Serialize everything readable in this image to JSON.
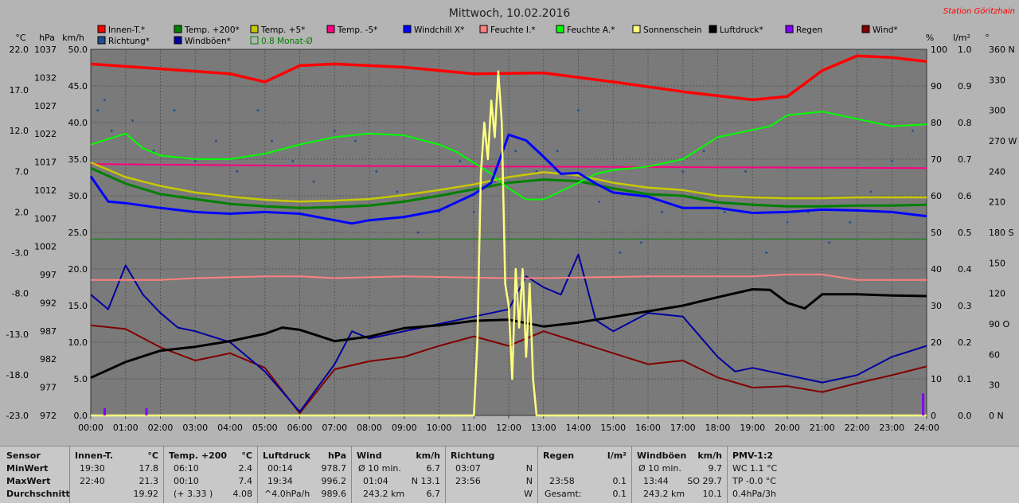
{
  "chart_data": {
    "type": "line",
    "title": "Mittwoch, 10.02.2016",
    "station": "Station Göritzhain",
    "x_ticks": [
      "00:00",
      "01:00",
      "02:00",
      "03:00",
      "04:00",
      "05:00",
      "06:00",
      "07:00",
      "08:00",
      "09:00",
      "10:00",
      "11:00",
      "12:00",
      "13:00",
      "14:00",
      "15:00",
      "16:00",
      "17:00",
      "18:00",
      "19:00",
      "20:00",
      "21:00",
      "22:00",
      "23:00",
      "24:00"
    ],
    "axes": {
      "celsius": {
        "label": "°C",
        "ticks": [
          "22.0",
          "17.0",
          "12.0",
          "7.0",
          "2.0",
          "-3.0",
          "-8.0",
          "-13.0",
          "-18.0",
          "-23.0"
        ]
      },
      "hpa": {
        "label": "hPa",
        "ticks": [
          "1037",
          "1032",
          "1027",
          "1022",
          "1017",
          "1012",
          "1007",
          "1002",
          "997",
          "992",
          "987",
          "982",
          "977",
          "972"
        ]
      },
      "kmh": {
        "label": "km/h",
        "ticks": [
          "50.0",
          "45.0",
          "40.0",
          "35.0",
          "30.0",
          "25.0",
          "20.0",
          "15.0",
          "10.0",
          "5.0",
          "0.0"
        ]
      },
      "percent": {
        "label": "%",
        "ticks": [
          "100",
          "90",
          "80",
          "70",
          "60",
          "50",
          "40",
          "30",
          "20",
          "10",
          "0"
        ]
      },
      "rain": {
        "label": "l/m²",
        "ticks": [
          "1.0",
          "0.9",
          "0.8",
          "0.7",
          "0.6",
          "0.5",
          "0.4",
          "0.3",
          "0.2",
          "0.1",
          "0.0"
        ]
      },
      "degree": {
        "label": "°",
        "ticks": [
          "360 N",
          "330",
          "300",
          "270 W",
          "240",
          "210",
          "180 S",
          "150",
          "120",
          "90 O",
          "60",
          "30",
          "0 N"
        ]
      }
    },
    "legend": [
      {
        "name": "Innen-T.*",
        "color": "#ff0000"
      },
      {
        "name": "Temp. +200*",
        "color": "#008000"
      },
      {
        "name": "Temp. +5*",
        "color": "#c8c800"
      },
      {
        "name": "Temp. -5*",
        "color": "#ff0080"
      },
      {
        "name": "Windchill X*",
        "color": "#0000ff"
      },
      {
        "name": "Feuchte I.*",
        "color": "#ff8080"
      },
      {
        "name": "Feuchte A.*",
        "color": "#00ff00"
      },
      {
        "name": "Sonnenschein",
        "color": "#ffff80"
      },
      {
        "name": "Luftdruck*",
        "color": "#000000"
      },
      {
        "name": "Regen",
        "color": "#8000ff"
      },
      {
        "name": "Wind*",
        "color": "#800000"
      },
      {
        "name": "Richtung*",
        "color": "#1f4e8c"
      },
      {
        "name": "Windböen*",
        "color": "#0000a0"
      },
      {
        "name": "0.8 Monat-Ø",
        "color": "#008000"
      }
    ],
    "series": [
      {
        "name": "Innen-T.*",
        "axis": "celsius",
        "color": "#ff0000",
        "x": [
          0,
          2,
          4,
          5,
          6,
          7,
          9,
          11,
          13,
          15,
          17,
          19,
          20,
          21,
          22,
          23,
          24
        ],
        "y": [
          20.2,
          19.6,
          19.0,
          18.0,
          20.0,
          20.2,
          19.8,
          19.0,
          19.1,
          18.0,
          16.8,
          15.8,
          16.2,
          19.4,
          21.2,
          21.0,
          20.5
        ]
      },
      {
        "name": "Temp. +200*",
        "axis": "celsius",
        "color": "#008000",
        "x": [
          0,
          1,
          2,
          3,
          4,
          5,
          6,
          7,
          8,
          9,
          10,
          11,
          12,
          13,
          14,
          15,
          16,
          17,
          18,
          19,
          20,
          21,
          22,
          23,
          24
        ],
        "y": [
          7.4,
          5.5,
          4.2,
          3.6,
          3.0,
          2.7,
          2.5,
          2.6,
          2.8,
          3.3,
          4.0,
          4.8,
          5.6,
          6.0,
          5.8,
          4.9,
          4.2,
          4.0,
          3.2,
          2.9,
          2.7,
          2.7,
          2.8,
          2.8,
          2.9
        ]
      },
      {
        "name": "Temp. +5*",
        "axis": "celsius",
        "color": "#c8c800",
        "x": [
          0,
          1,
          2,
          3,
          4,
          5,
          6,
          7,
          8,
          9,
          10,
          11,
          12,
          13,
          14,
          15,
          16,
          17,
          18,
          19,
          20,
          21,
          22,
          23,
          24
        ],
        "y": [
          8.1,
          6.3,
          5.2,
          4.4,
          3.9,
          3.5,
          3.3,
          3.4,
          3.6,
          4.1,
          4.7,
          5.4,
          6.3,
          6.9,
          6.5,
          5.6,
          5.0,
          4.7,
          4.0,
          3.8,
          3.7,
          3.7,
          3.8,
          3.8,
          3.8
        ]
      },
      {
        "name": "Temp. -5*",
        "axis": "celsius",
        "color": "#ff0080",
        "x": [
          0,
          6,
          12,
          18,
          24
        ],
        "y": [
          7.9,
          7.7,
          7.6,
          7.5,
          7.4
        ]
      },
      {
        "name": "Windchill X*",
        "axis": "celsius",
        "color": "#0000ff",
        "x": [
          0,
          0.5,
          1,
          2,
          3,
          4,
          5,
          6,
          7,
          7.5,
          8,
          9,
          10,
          10.5,
          11,
          11.5,
          12,
          12.5,
          13,
          13.5,
          14,
          14.5,
          15,
          16,
          17,
          18,
          19,
          20,
          21,
          22,
          23,
          24
        ],
        "y": [
          6.4,
          3.3,
          3.1,
          2.5,
          2.0,
          1.8,
          2.0,
          1.8,
          1.0,
          0.6,
          1.0,
          1.4,
          2.2,
          3.2,
          4.2,
          5.6,
          11.5,
          10.8,
          8.8,
          6.7,
          6.8,
          5.5,
          4.4,
          3.9,
          2.5,
          2.5,
          1.9,
          2.0,
          2.3,
          2.2,
          2.0,
          1.5
        ]
      },
      {
        "name": "Feuchte I.*",
        "axis": "percent",
        "color": "#ff8080",
        "x": [
          0,
          2,
          3,
          5,
          6,
          7,
          9,
          12,
          13,
          16,
          18,
          19,
          20,
          21,
          22,
          23,
          24
        ],
        "y": [
          37,
          37,
          37.5,
          38,
          38,
          37.5,
          38,
          37.5,
          37.5,
          38,
          38,
          38,
          38.5,
          38.5,
          37,
          37,
          37
        ]
      },
      {
        "name": "Feuchte A.*",
        "axis": "percent",
        "color": "#00ff00",
        "x": [
          0,
          1,
          1.5,
          2,
          3,
          4,
          5,
          6,
          7,
          8,
          9,
          10,
          10.5,
          11,
          11.5,
          12,
          12.5,
          13,
          14,
          14.5,
          15,
          16,
          17,
          18,
          19,
          19.5,
          20,
          21,
          22,
          23,
          24
        ],
        "y": [
          74,
          77,
          73,
          71,
          70,
          70,
          71.5,
          74,
          76,
          77,
          76.5,
          74,
          72,
          69,
          66,
          62,
          59,
          59,
          63.5,
          66,
          67,
          68,
          70,
          76,
          78,
          79,
          82,
          83,
          81,
          79,
          79.5
        ]
      },
      {
        "name": "Sonnenschein",
        "axis": "kmh",
        "color": "#ffff80",
        "x": [
          0,
          11.0,
          11.1,
          11.2,
          11.3,
          11.4,
          11.5,
          11.6,
          11.7,
          11.8,
          11.9,
          12.0,
          12.1,
          12.2,
          12.3,
          12.4,
          12.5,
          12.6,
          12.7,
          12.8,
          24
        ],
        "y": [
          0,
          0,
          10,
          33,
          40,
          35,
          43,
          38,
          47,
          40,
          18,
          15,
          5,
          20,
          12,
          20,
          8,
          18,
          5,
          0,
          0
        ]
      },
      {
        "name": "Luftdruck*",
        "axis": "hpa",
        "color": "#000000",
        "x": [
          0,
          1,
          2,
          3,
          4,
          5,
          5.5,
          6,
          7,
          8,
          9,
          10,
          11,
          12,
          13,
          14,
          15,
          16,
          17,
          18,
          19,
          19.5,
          20,
          20.5,
          21,
          22,
          23,
          24
        ],
        "y": [
          978.7,
          981.5,
          983.5,
          984.2,
          985.2,
          986.5,
          987.6,
          987.2,
          985.2,
          986.0,
          987.5,
          988.0,
          988.8,
          989.0,
          987.8,
          988.5,
          989.5,
          990.5,
          991.5,
          993.0,
          994.4,
          994.3,
          992.0,
          991.0,
          993.5,
          993.5,
          993.3,
          993.2
        ]
      },
      {
        "name": "Regen",
        "axis": "rain",
        "color": "#8000ff",
        "x": [
          0.4,
          1.6,
          23.9
        ],
        "y": [
          0.02,
          0.02,
          0.06
        ]
      },
      {
        "name": "Wind*",
        "axis": "kmh",
        "color": "#800000",
        "x": [
          0,
          1,
          2,
          3,
          4,
          5,
          6,
          7,
          8,
          9,
          10,
          11,
          12,
          13,
          14,
          15,
          16,
          17,
          18,
          19,
          20,
          21,
          22,
          23,
          24
        ],
        "y": [
          12.3,
          11.8,
          9.3,
          7.5,
          8.5,
          6.5,
          0.3,
          6.3,
          7.4,
          8.0,
          9.5,
          10.8,
          9.5,
          11.5,
          10.0,
          8.5,
          7.0,
          7.5,
          5.2,
          3.8,
          4.0,
          3.2,
          4.4,
          5.5,
          6.7
        ]
      },
      {
        "name": "Windböen*",
        "axis": "kmh",
        "color": "#0000a0",
        "x": [
          0,
          0.5,
          1,
          1.5,
          2,
          2.5,
          3,
          4,
          5,
          6,
          7,
          7.5,
          8,
          9,
          10,
          11,
          12,
          12.5,
          13,
          13.5,
          14,
          14.5,
          15,
          16,
          17,
          18,
          18.5,
          19,
          20,
          21,
          22,
          23,
          24
        ],
        "y": [
          16.5,
          14.5,
          20.5,
          16.5,
          14.0,
          12.0,
          11.5,
          10.0,
          6.0,
          0.5,
          7.0,
          11.5,
          10.5,
          11.5,
          12.5,
          13.5,
          14.5,
          19.0,
          17.5,
          16.5,
          22.0,
          13.0,
          11.5,
          14.0,
          13.5,
          8.0,
          6.0,
          6.5,
          5.5,
          4.5,
          5.5,
          8.0,
          9.5
        ]
      },
      {
        "name": "0.8 Monat-Ø",
        "axis": "kmh",
        "color": "#008000",
        "x": [
          0,
          24
        ],
        "y": [
          24.1,
          24.1
        ]
      }
    ],
    "direction_points": {
      "axis": "degree",
      "color": "#1f4e8c",
      "values": [
        [
          0.2,
          300
        ],
        [
          0.4,
          310
        ],
        [
          0.6,
          280
        ],
        [
          1.2,
          290
        ],
        [
          1.8,
          260
        ],
        [
          2.4,
          300
        ],
        [
          3.0,
          250
        ],
        [
          3.6,
          270
        ],
        [
          4.2,
          240
        ],
        [
          4.8,
          300
        ],
        [
          5.2,
          270
        ],
        [
          5.8,
          250
        ],
        [
          6.4,
          230
        ],
        [
          7.0,
          280
        ],
        [
          7.6,
          270
        ],
        [
          8.2,
          240
        ],
        [
          8.8,
          220
        ],
        [
          9.4,
          180
        ],
        [
          10.0,
          200
        ],
        [
          10.6,
          250
        ],
        [
          11.0,
          200
        ],
        [
          11.6,
          230
        ],
        [
          12.2,
          260
        ],
        [
          12.8,
          240
        ],
        [
          13.4,
          260
        ],
        [
          14.0,
          300
        ],
        [
          14.6,
          210
        ],
        [
          15.2,
          160
        ],
        [
          15.8,
          170
        ],
        [
          16.4,
          200
        ],
        [
          17.0,
          240
        ],
        [
          17.6,
          260
        ],
        [
          18.2,
          200
        ],
        [
          18.8,
          240
        ],
        [
          19.4,
          160
        ],
        [
          20.0,
          190
        ],
        [
          20.6,
          200
        ],
        [
          21.2,
          170
        ],
        [
          21.8,
          190
        ],
        [
          22.4,
          220
        ],
        [
          23.0,
          250
        ],
        [
          23.6,
          280
        ]
      ]
    }
  },
  "unit_headers": {
    "deg_c": "°C",
    "hpa": "hPa",
    "kmh": "km/h",
    "pct": "%",
    "rain": "l/m²",
    "deg": "°"
  },
  "stats": {
    "sensor": {
      "title": "Sensor",
      "rows": [
        "MinWert",
        "MaxWert",
        "Durchschnitt"
      ]
    },
    "innen": {
      "title": "Innen-T.",
      "unit": "°C",
      "r1": [
        "19:30",
        "17.8"
      ],
      "r2": [
        "22:40",
        "21.3"
      ],
      "r3": [
        "",
        "19.92"
      ]
    },
    "temp200": {
      "title": "Temp. +200",
      "unit": "°C",
      "r1": [
        "06:10",
        "2.4"
      ],
      "r2": [
        "00:10",
        "7.4"
      ],
      "r3": [
        "(+ 3.33 )",
        "4.08"
      ]
    },
    "luftdruck": {
      "title": "Luftdruck",
      "unit": "hPa",
      "r1": [
        "00:14",
        "978.7"
      ],
      "r2": [
        "19:34",
        "996.2"
      ],
      "r3": [
        "^4.0hPa/h",
        "989.6"
      ]
    },
    "wind": {
      "title": "Wind",
      "unit": "km/h",
      "r1": [
        "Ø 10 min.",
        "6.7"
      ],
      "r2": [
        "01:04",
        "N 13.1"
      ],
      "r3": [
        "243.2 km",
        "6.7"
      ]
    },
    "richtung": {
      "title": "Richtung",
      "r1": [
        "03:07",
        "N"
      ],
      "r2": [
        "23:56",
        "N"
      ],
      "r3": [
        "",
        "W"
      ]
    },
    "regen": {
      "title": "Regen",
      "unit": "l/m²",
      "r1": [
        "",
        ""
      ],
      "r2": [
        "23:58",
        "0.1"
      ],
      "r3": [
        "Gesamt:",
        "0.1"
      ]
    },
    "windboeen": {
      "title": "Windböen",
      "unit": "km/h",
      "r1": [
        "Ø 10 min.",
        "9.7"
      ],
      "r2": [
        "13:44",
        "SO 29.7"
      ],
      "r3": [
        "243.2 km",
        "10.1"
      ]
    },
    "pmv": {
      "title": "PMV-1:2",
      "r1": "WC 1.1 °C",
      "r2": "TP -0.0 °C",
      "r3": "0.4hPa/3h"
    }
  }
}
